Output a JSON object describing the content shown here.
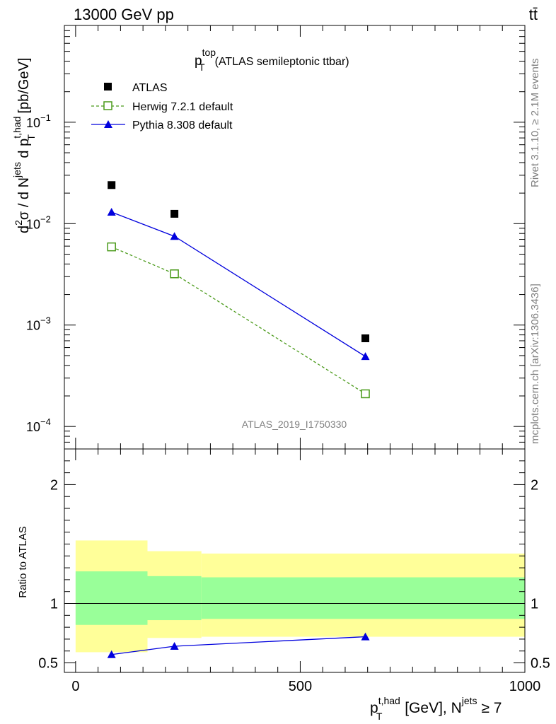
{
  "header": {
    "energy_label": "13000 GeV pp",
    "process_label": "tt̄"
  },
  "side_labels": {
    "rivet": "Rivet 3.1.10, ≥ 2.1M events",
    "site": "mcplots.cern.ch [arXiv:1306.3436]"
  },
  "chart_data": [
    {
      "type": "scatter",
      "title_main": "p",
      "title_sup": "top",
      "title_sub": "T",
      "title_rest": "(ATLAS semileptonic ttbar)",
      "analysis_id": "ATLAS_2019_I1750330",
      "y_log": true,
      "xlim": [
        -25,
        1000
      ],
      "ylim": [
        6e-05,
        0.9
      ],
      "ylabel_parts": [
        "d",
        "2",
        "σ / d N",
        "jets",
        " d p",
        "t,had",
        "T",
        " [pb/GeV]"
      ],
      "y_tick_labels": [
        "10",
        "10",
        "10",
        "10"
      ],
      "y_tick_exponents": [
        "−4",
        "−3",
        "−2",
        "−1"
      ],
      "y_tick_values": [
        0.0001,
        0.001,
        0.01,
        0.1
      ],
      "legend_position": "top-left",
      "series": [
        {
          "name": "ATLAS",
          "marker": "square-filled",
          "color": "#000000",
          "line": "none",
          "x": [
            80,
            220,
            645
          ],
          "y": [
            0.024,
            0.0125,
            0.00074
          ]
        },
        {
          "name": "Herwig 7.2.1 default",
          "marker": "square-open",
          "color": "#4a9a1a",
          "line": "dashed",
          "x": [
            80,
            220,
            645
          ],
          "y": [
            0.0059,
            0.0032,
            0.00021
          ]
        },
        {
          "name": "Pythia 8.308 default",
          "marker": "triangle-filled",
          "color": "#0000dd",
          "line": "solid",
          "x": [
            80,
            220,
            645
          ],
          "y": [
            0.013,
            0.0075,
            0.00049
          ]
        }
      ]
    },
    {
      "type": "line",
      "ylabel": "Ratio to ATLAS",
      "xlim": [
        -25,
        1000
      ],
      "ylim": [
        0.42,
        2.3
      ],
      "x_tick_labels": [
        "0",
        "500",
        "1000"
      ],
      "x_tick_values": [
        0,
        500,
        1000
      ],
      "y_tick_labels": [
        "0.5",
        "1",
        "2"
      ],
      "y_tick_values": [
        0.5,
        1,
        2
      ],
      "xlabel_parts": [
        "p",
        "t,had",
        "T",
        " [GeV], N",
        "jets",
        " ≥ 7"
      ],
      "reference_line": 1,
      "bands": [
        {
          "x0": 0,
          "x1": 160,
          "outer": [
            0.59,
            1.53
          ],
          "inner": [
            0.82,
            1.27
          ]
        },
        {
          "x0": 160,
          "x1": 280,
          "outer": [
            0.71,
            1.44
          ],
          "inner": [
            0.86,
            1.23
          ]
        },
        {
          "x0": 280,
          "x1": 1000,
          "outer": [
            0.72,
            1.42
          ],
          "inner": [
            0.87,
            1.22
          ]
        }
      ],
      "band_colors": {
        "outer": "#ffff99",
        "inner": "#99ff99"
      },
      "series": [
        {
          "name": "Pythia 8.308 default",
          "color": "#0000dd",
          "x": [
            80,
            220,
            645
          ],
          "y": [
            0.57,
            0.64,
            0.72
          ]
        }
      ]
    }
  ]
}
